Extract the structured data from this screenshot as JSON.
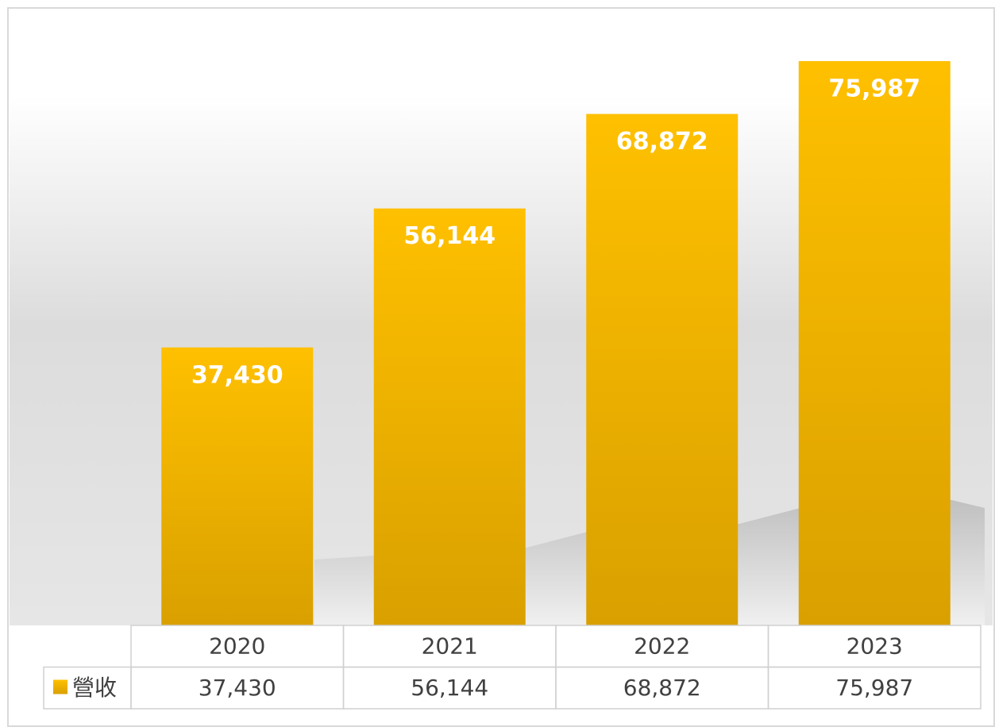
{
  "chart_data": {
    "type": "bar",
    "categories": [
      "2020",
      "2021",
      "2022",
      "2023"
    ],
    "series": [
      {
        "name": "營收",
        "color": "#fbbc00",
        "values": [
          37430,
          56144,
          68872,
          75987
        ],
        "value_labels": [
          "37,430",
          "56,144",
          "68,872",
          "75,987"
        ]
      }
    ]
  }
}
